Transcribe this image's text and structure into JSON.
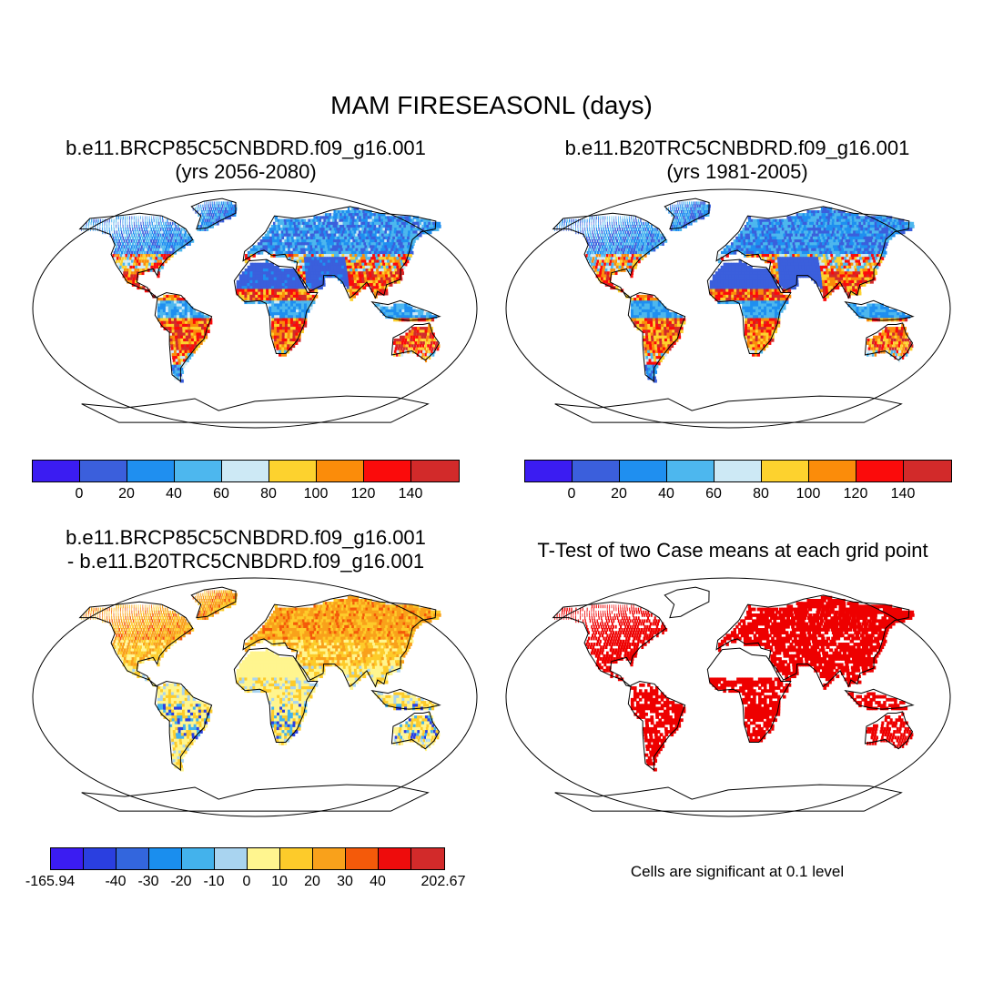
{
  "title": "MAM FIRESEASONL (days)",
  "panels": [
    {
      "title_line1": "b.e11.BRCP85C5CNBDRD.f09_g16.001",
      "title_line2": "(yrs 2056-2080)"
    },
    {
      "title_line1": "b.e11.B20TRC5CNBDRD.f09_g16.001",
      "title_line2": "(yrs 1981-2005)"
    },
    {
      "title_line1": "b.e11.BRCP85C5CNBDRD.f09_g16.001",
      "title_line2": "- b.e11.B20TRC5CNBDRD.f09_g16.001"
    },
    {
      "title_line1": "T-Test of two Case means at each grid point",
      "title_line2": ""
    }
  ],
  "colorbar_abs": {
    "colors": [
      "#3b1cf2",
      "#3b5fdc",
      "#1f8ff0",
      "#4db7ee",
      "#cde9f5",
      "#fdd22e",
      "#fb8c0a",
      "#fb0b0b",
      "#d22a2a"
    ],
    "labels": [
      "0",
      "20",
      "40",
      "60",
      "80",
      "100",
      "120",
      "140"
    ]
  },
  "colorbar_diff": {
    "colors": [
      "#3b1cf2",
      "#2a3fe0",
      "#3366dd",
      "#1a8eee",
      "#43b2ec",
      "#a9d4f0",
      "#fff58f",
      "#fdcb2a",
      "#f9a11b",
      "#f45a0a",
      "#ee0c0c",
      "#d22a2a"
    ],
    "labels": [
      "-165.94",
      "-40",
      "-30",
      "-20",
      "-10",
      "0",
      "10",
      "20",
      "30",
      "40",
      "202.67"
    ]
  },
  "significance_color": "#ee0000",
  "significance_note": "Cells are significant at 0.1 level"
}
